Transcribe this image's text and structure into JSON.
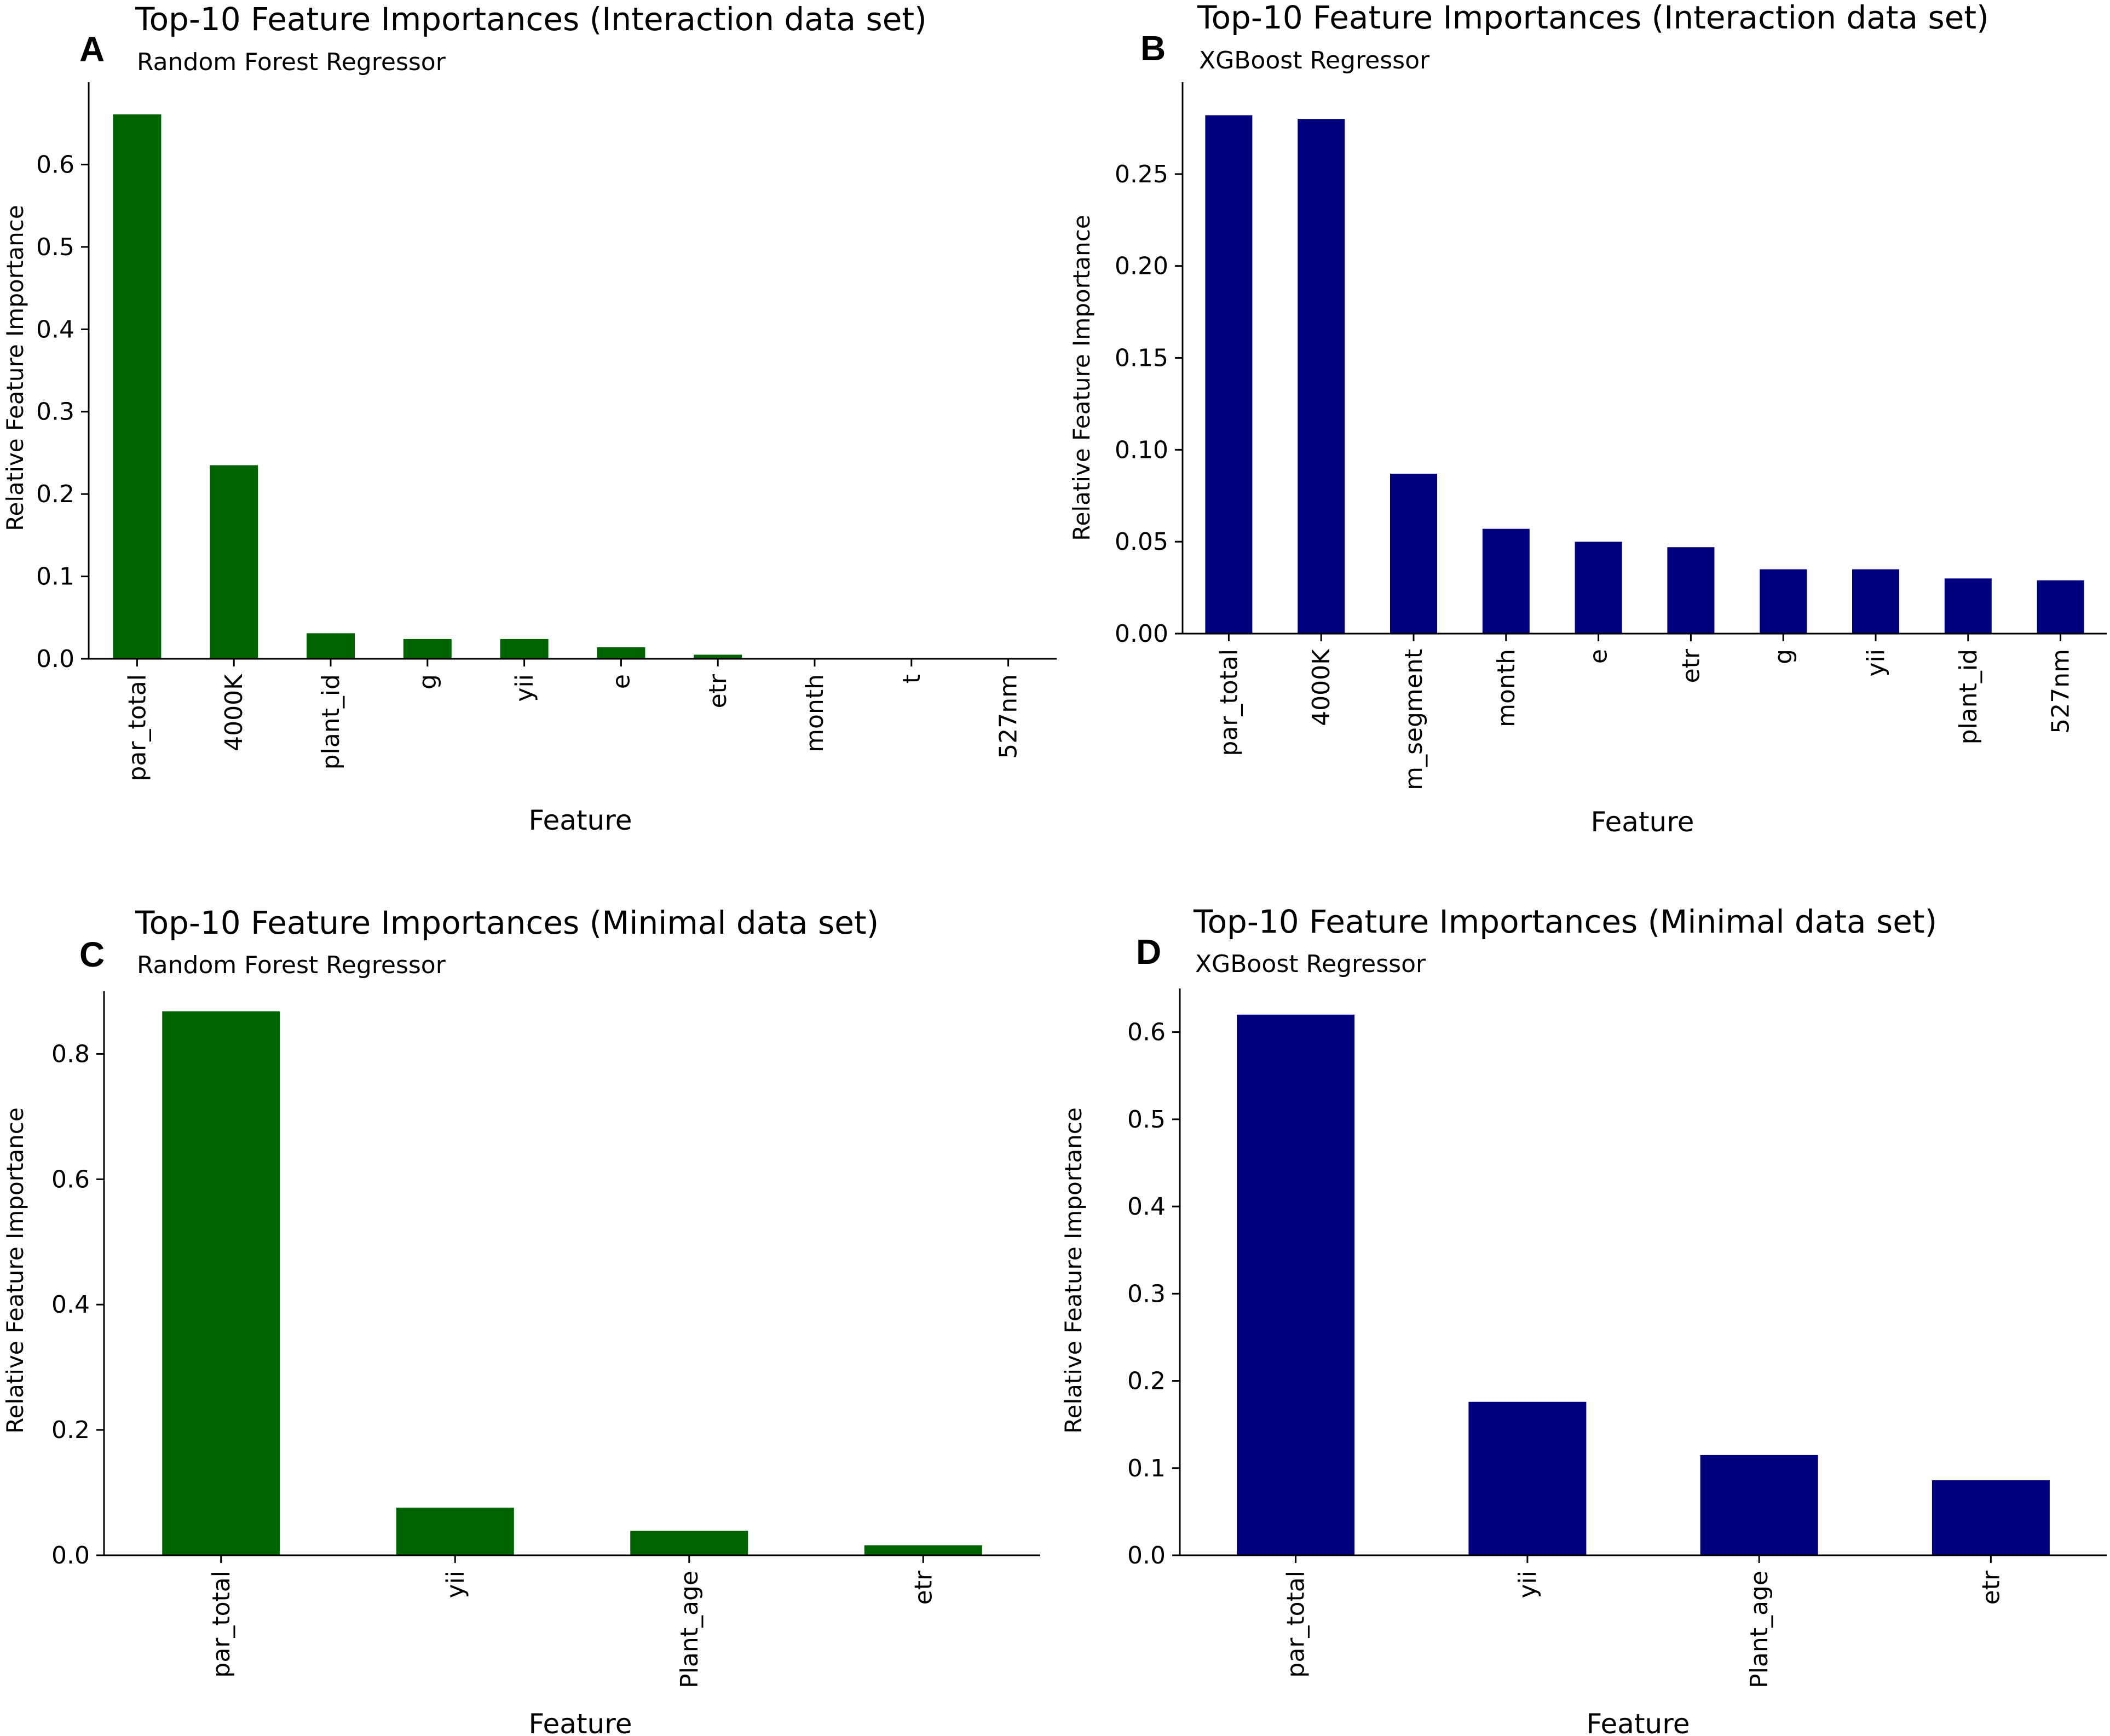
{
  "chart_data": [
    {
      "panel": "A",
      "type": "bar",
      "title": "Top-10 Feature Importances (Interaction data set)",
      "subtitle": "Random Forest Regressor",
      "xlabel": "Feature",
      "ylabel": "Relative Feature Importance",
      "categories": [
        "par_total",
        "4000K",
        "plant_id",
        "g",
        "yii",
        "e",
        "etr",
        "month",
        "t",
        "527nm"
      ],
      "values": [
        0.661,
        0.235,
        0.031,
        0.024,
        0.024,
        0.014,
        0.005,
        0.001,
        0.0005,
        0.0003
      ],
      "ylim": [
        0,
        0.7
      ],
      "yticks": [
        0.0,
        0.1,
        0.2,
        0.3,
        0.4,
        0.5,
        0.6
      ],
      "ytick_labels": [
        "0.0",
        "0.1",
        "0.2",
        "0.3",
        "0.4",
        "0.5",
        "0.6"
      ],
      "color": "#006400",
      "grid": false
    },
    {
      "panel": "B",
      "type": "bar",
      "title": "Top-10 Feature Importances (Interaction data set)",
      "subtitle": "XGBoost Regressor",
      "xlabel": "Feature",
      "ylabel": "Relative Feature Importance",
      "categories": [
        "par_total",
        "4000K",
        "m_segment",
        "month",
        "e",
        "etr",
        "g",
        "yii",
        "plant_id",
        "527nm"
      ],
      "values": [
        0.282,
        0.28,
        0.087,
        0.057,
        0.05,
        0.047,
        0.035,
        0.035,
        0.03,
        0.029
      ],
      "ylim": [
        0,
        0.3
      ],
      "yticks": [
        0.0,
        0.05,
        0.1,
        0.15,
        0.2,
        0.25
      ],
      "ytick_labels": [
        "0.00",
        "0.05",
        "0.10",
        "0.15",
        "0.20",
        "0.25"
      ],
      "color": "#00007F",
      "grid": false
    },
    {
      "panel": "C",
      "type": "bar",
      "title": "Top-10 Feature Importances (Minimal data set)",
      "subtitle": "Random Forest Regressor",
      "xlabel": "Feature",
      "ylabel": "Relative Feature Importance",
      "categories": [
        "par_total",
        "yii",
        "Plant_age",
        "etr"
      ],
      "values": [
        0.868,
        0.076,
        0.039,
        0.016
      ],
      "ylim": [
        0,
        0.9
      ],
      "yticks": [
        0.0,
        0.2,
        0.4,
        0.6,
        0.8
      ],
      "ytick_labels": [
        "0.0",
        "0.2",
        "0.4",
        "0.6",
        "0.8"
      ],
      "color": "#006400",
      "grid": false
    },
    {
      "panel": "D",
      "type": "bar",
      "title": "Top-10 Feature Importances (Minimal data set)",
      "subtitle": "XGBoost Regressor",
      "xlabel": "Feature",
      "ylabel": "Relative Feature Importance",
      "categories": [
        "par_total",
        "yii",
        "Plant_age",
        "etr"
      ],
      "values": [
        0.62,
        0.176,
        0.115,
        0.086
      ],
      "ylim": [
        0,
        0.65
      ],
      "yticks": [
        0.0,
        0.1,
        0.2,
        0.3,
        0.4,
        0.5,
        0.6
      ],
      "ytick_labels": [
        "0.0",
        "0.1",
        "0.2",
        "0.3",
        "0.4",
        "0.5",
        "0.6"
      ],
      "color": "#00007F",
      "grid": false
    }
  ]
}
